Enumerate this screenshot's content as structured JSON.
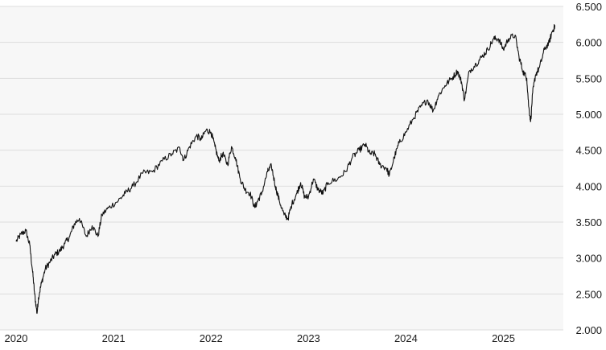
{
  "colors": {
    "plot_background": "#f7f7f7",
    "grid": "#dcdcdc",
    "line": "#111111",
    "text": "#1a1a1a"
  },
  "chart_data": {
    "type": "line",
    "title": "",
    "xlabel": "",
    "ylabel": "",
    "grid": true,
    "legend": "none",
    "x_range": [
      2020.0,
      2025.78
    ],
    "ylim": [
      2000,
      6500
    ],
    "y_ticks": [
      2000,
      2500,
      3000,
      3500,
      4000,
      4500,
      5000,
      5500,
      6000,
      6500
    ],
    "y_tick_labels": [
      "2.000",
      "2.500",
      "3.000",
      "3.500",
      "4.000",
      "4.500",
      "5.000",
      "5.500",
      "6.000",
      "6.500"
    ],
    "x_ticks": [
      2020,
      2021,
      2022,
      2023,
      2024,
      2025
    ],
    "x_tick_labels": [
      "2020",
      "2021",
      "2022",
      "2023",
      "2024",
      "2025"
    ],
    "series": [
      {
        "points": [
          [
            2020.0,
            3230
          ],
          [
            2020.05,
            3330
          ],
          [
            2020.1,
            3380
          ],
          [
            2020.14,
            3180
          ],
          [
            2020.17,
            2800
          ],
          [
            2020.19,
            2500
          ],
          [
            2020.215,
            2230
          ],
          [
            2020.23,
            2450
          ],
          [
            2020.26,
            2650
          ],
          [
            2020.3,
            2850
          ],
          [
            2020.35,
            2950
          ],
          [
            2020.4,
            3050
          ],
          [
            2020.45,
            3100
          ],
          [
            2020.5,
            3200
          ],
          [
            2020.55,
            3300
          ],
          [
            2020.6,
            3480
          ],
          [
            2020.65,
            3550
          ],
          [
            2020.72,
            3300
          ],
          [
            2020.78,
            3450
          ],
          [
            2020.84,
            3300
          ],
          [
            2020.88,
            3600
          ],
          [
            2020.95,
            3700
          ],
          [
            2021.05,
            3800
          ],
          [
            2021.12,
            3900
          ],
          [
            2021.2,
            4000
          ],
          [
            2021.3,
            4180
          ],
          [
            2021.4,
            4200
          ],
          [
            2021.5,
            4350
          ],
          [
            2021.6,
            4450
          ],
          [
            2021.68,
            4530
          ],
          [
            2021.72,
            4360
          ],
          [
            2021.78,
            4550
          ],
          [
            2021.85,
            4700
          ],
          [
            2021.9,
            4650
          ],
          [
            2021.95,
            4780
          ],
          [
            2022.0,
            4750
          ],
          [
            2022.04,
            4550
          ],
          [
            2022.08,
            4350
          ],
          [
            2022.12,
            4450
          ],
          [
            2022.17,
            4300
          ],
          [
            2022.21,
            4550
          ],
          [
            2022.25,
            4400
          ],
          [
            2022.3,
            4100
          ],
          [
            2022.35,
            3950
          ],
          [
            2022.4,
            3900
          ],
          [
            2022.45,
            3700
          ],
          [
            2022.48,
            3800
          ],
          [
            2022.52,
            3900
          ],
          [
            2022.58,
            4200
          ],
          [
            2022.62,
            4280
          ],
          [
            2022.66,
            4000
          ],
          [
            2022.7,
            3800
          ],
          [
            2022.75,
            3600
          ],
          [
            2022.79,
            3550
          ],
          [
            2022.83,
            3750
          ],
          [
            2022.88,
            3900
          ],
          [
            2022.92,
            4050
          ],
          [
            2022.96,
            3850
          ],
          [
            2023.0,
            3850
          ],
          [
            2023.05,
            4100
          ],
          [
            2023.1,
            3950
          ],
          [
            2023.15,
            3900
          ],
          [
            2023.2,
            4050
          ],
          [
            2023.3,
            4100
          ],
          [
            2023.38,
            4200
          ],
          [
            2023.45,
            4400
          ],
          [
            2023.52,
            4500
          ],
          [
            2023.58,
            4580
          ],
          [
            2023.63,
            4450
          ],
          [
            2023.68,
            4450
          ],
          [
            2023.73,
            4300
          ],
          [
            2023.8,
            4250
          ],
          [
            2023.83,
            4150
          ],
          [
            2023.88,
            4400
          ],
          [
            2023.93,
            4600
          ],
          [
            2024.0,
            4750
          ],
          [
            2024.08,
            4950
          ],
          [
            2024.15,
            5100
          ],
          [
            2024.22,
            5200
          ],
          [
            2024.28,
            5050
          ],
          [
            2024.33,
            5250
          ],
          [
            2024.4,
            5400
          ],
          [
            2024.47,
            5500
          ],
          [
            2024.53,
            5600
          ],
          [
            2024.57,
            5450
          ],
          [
            2024.6,
            5200
          ],
          [
            2024.65,
            5600
          ],
          [
            2024.72,
            5700
          ],
          [
            2024.78,
            5800
          ],
          [
            2024.84,
            5900
          ],
          [
            2024.9,
            6050
          ],
          [
            2024.95,
            6050
          ],
          [
            2025.0,
            5900
          ],
          [
            2025.05,
            6050
          ],
          [
            2025.12,
            6100
          ],
          [
            2025.16,
            5800
          ],
          [
            2025.2,
            5600
          ],
          [
            2025.24,
            5500
          ],
          [
            2025.26,
            5100
          ],
          [
            2025.28,
            4900
          ],
          [
            2025.3,
            5300
          ],
          [
            2025.33,
            5550
          ],
          [
            2025.37,
            5650
          ],
          [
            2025.42,
            5900
          ],
          [
            2025.47,
            6000
          ],
          [
            2025.5,
            6150
          ],
          [
            2025.53,
            6230
          ]
        ]
      }
    ]
  }
}
